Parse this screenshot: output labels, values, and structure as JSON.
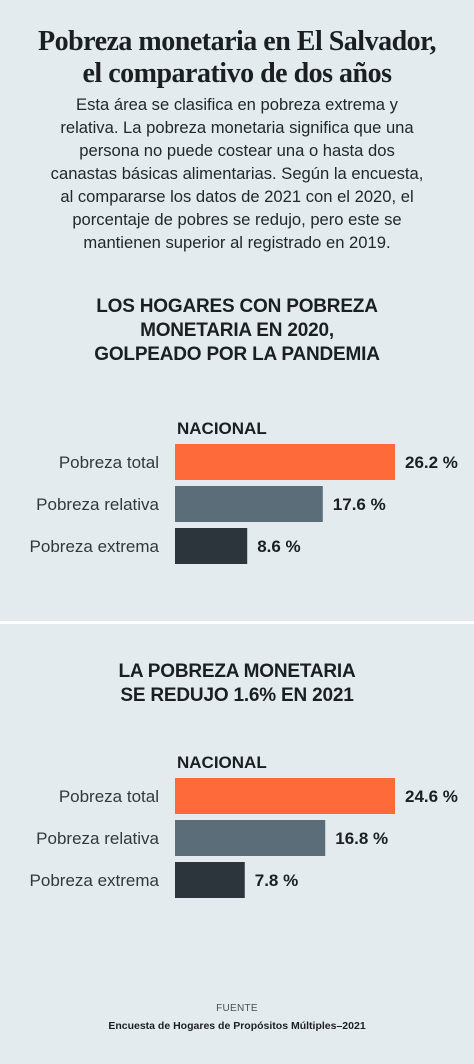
{
  "header": {
    "title_line1": "Pobreza monetaria en El Salvador,",
    "title_line2": "el comparativo de dos años",
    "intro_lines": [
      "Esta área se clasifica en pobreza extrema y",
      "relativa. La pobreza monetaria significa que una",
      "persona no puede costear una o hasta dos",
      "canastas básicas alimentarias. Según la encuesta,",
      "al compararse los datos de 2021 con el 2020, el",
      "porcentaje de pobres se redujo, pero este se",
      "mantienen superior al registrado en 2019."
    ]
  },
  "colors": {
    "background": "#e3ebee",
    "total": "#ff6a3a",
    "relativa": "#5b6d79",
    "extrema": "#2c353c"
  },
  "chart_data": [
    {
      "type": "bar",
      "orientation": "horizontal",
      "title_lines": [
        "LOS HOGARES CON POBREZA",
        "MONETARIA EN 2020,",
        "GOLPEADO POR LA PANDEMIA"
      ],
      "group_label": "NACIONAL",
      "categories": [
        "Pobreza total",
        "Pobreza relativa",
        "Pobreza extrema"
      ],
      "values": [
        26.2,
        17.6,
        8.6
      ],
      "value_labels": [
        "26.2 %",
        "17.6 %",
        "8.6 %"
      ],
      "unit": "%",
      "xlim": [
        0,
        26.2
      ],
      "grid": false
    },
    {
      "type": "bar",
      "orientation": "horizontal",
      "title_lines": [
        "LA POBREZA MONETARIA",
        "SE REDUJO 1.6% EN 2021"
      ],
      "group_label": "NACIONAL",
      "categories": [
        "Pobreza total",
        "Pobreza relativa",
        "Pobreza extrema"
      ],
      "values": [
        24.6,
        16.8,
        7.8
      ],
      "value_labels": [
        "24.6 %",
        "16.8 %",
        "7.8 %"
      ],
      "unit": "%",
      "xlim": [
        0,
        24.6
      ],
      "grid": false
    }
  ],
  "footer": {
    "label": "FUENTE",
    "source": "Encuesta de Hogares de Propósitos Múltiples–2021"
  }
}
